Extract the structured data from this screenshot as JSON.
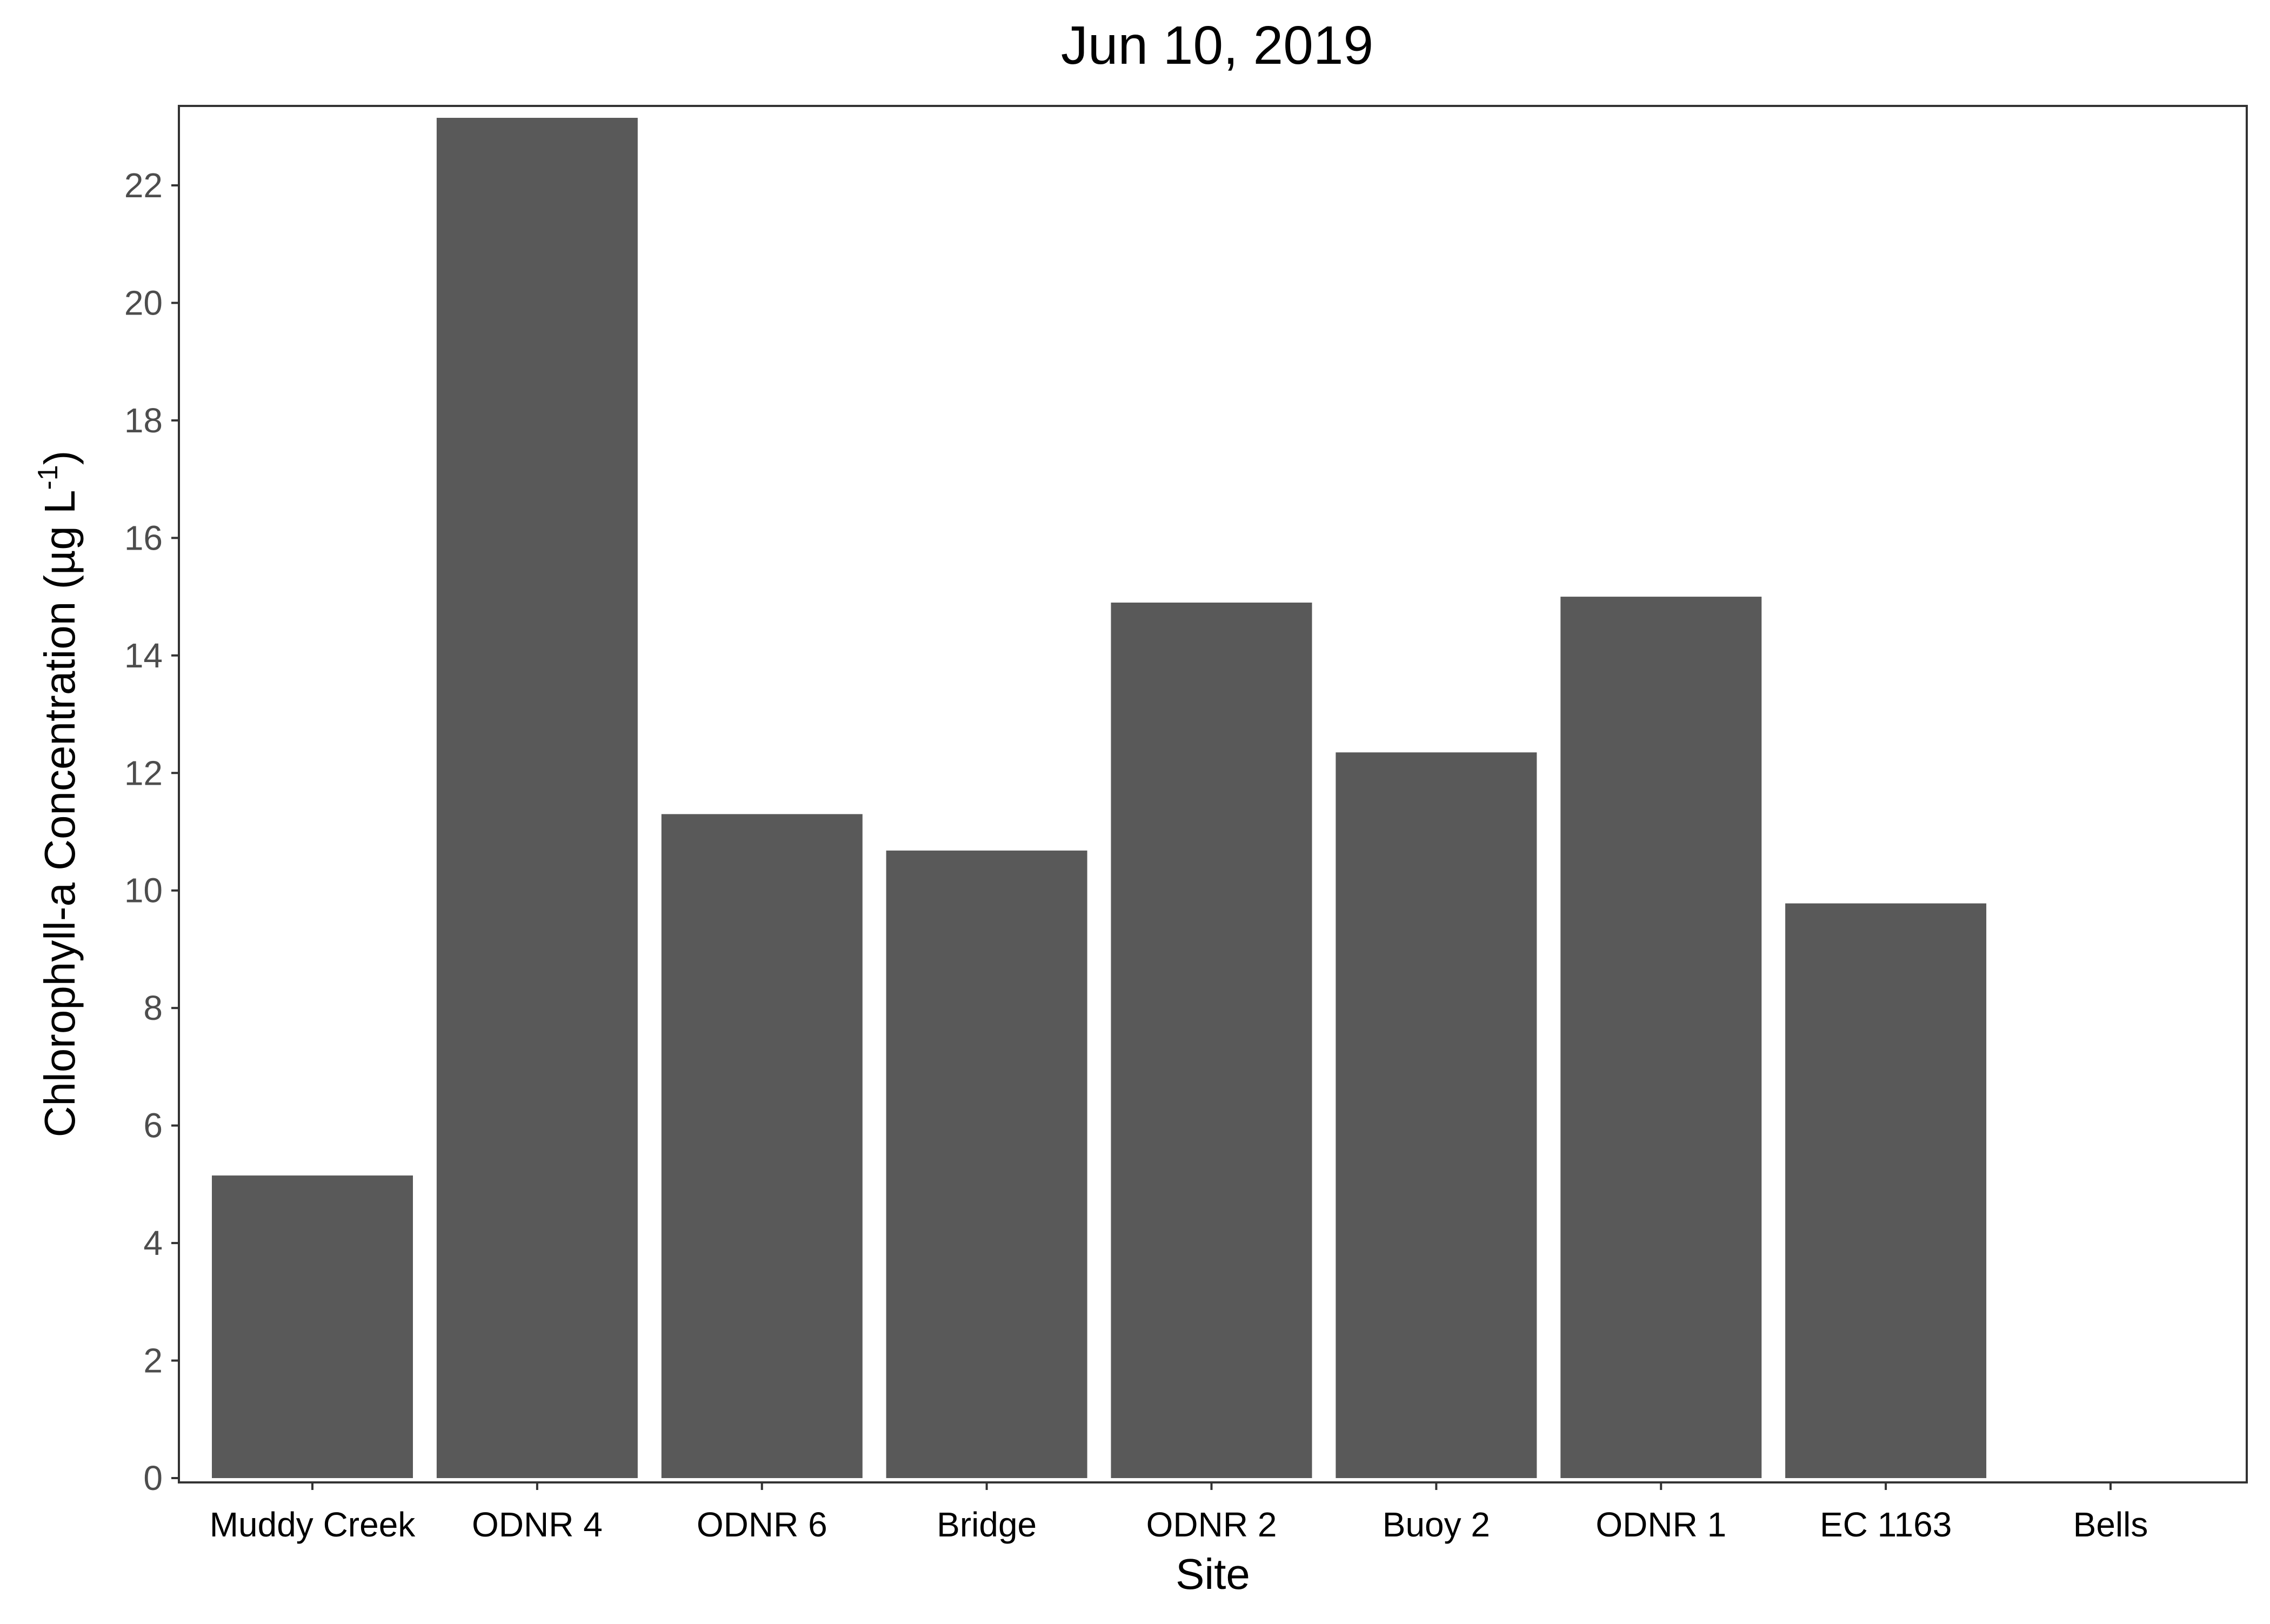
{
  "chart_data": {
    "type": "bar",
    "title": "Jun 10, 2019",
    "xlabel": "Site",
    "ylabel": "Chlorophyll-a Concentration (µg L",
    "ylabel_superscript": "-1",
    "ylabel_close": ")",
    "categories": [
      "Muddy Creek",
      "ODNR 4",
      "ODNR 6",
      "Bridge",
      "ODNR 2",
      "Buoy 2",
      "ODNR 1",
      "EC 1163",
      "Bells"
    ],
    "values": [
      5.15,
      23.15,
      11.3,
      10.68,
      14.9,
      12.35,
      15.0,
      9.78,
      0
    ],
    "ylim": [
      0,
      23.2
    ],
    "yticks": [
      0,
      2,
      4,
      6,
      8,
      10,
      12,
      14,
      16,
      18,
      20,
      22
    ],
    "bar_color": "#595959",
    "grid": false,
    "legend": "none"
  }
}
